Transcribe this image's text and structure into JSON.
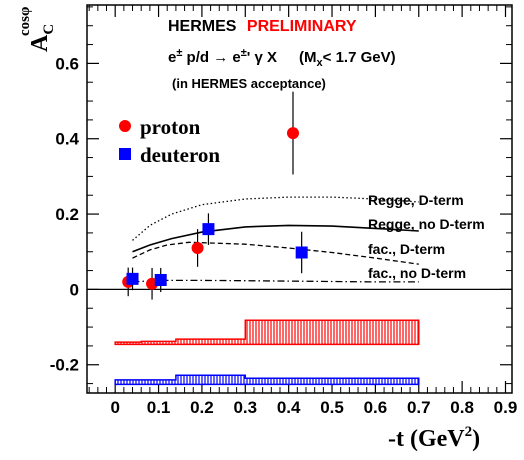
{
  "chart_data": {
    "type": "scatter",
    "title": "HERMES",
    "title_tag": "PRELIMINARY",
    "title_tag_color": "#ff0000",
    "subtitle_parts": {
      "a": "e",
      "b": "±",
      "c": " p/d → e",
      "d": "±",
      "e": "' γ X",
      "mass_open": "(M",
      "mass_sub": "x",
      "mass_close": "< 1.7 GeV)"
    },
    "note": "(in HERMES acceptance)",
    "xlabel_main": "-t (GeV",
    "xlabel_exp": "2",
    "xlabel_close": ")",
    "ylabel_main": "A",
    "ylabel_sub": "C",
    "ylabel_sup": "cosφ",
    "xlim": [
      -0.065,
      0.915
    ],
    "ylim": [
      -0.275,
      0.755
    ],
    "xticks": [
      0,
      0.1,
      0.2,
      0.3,
      0.4,
      0.5,
      0.6,
      0.7,
      0.8,
      0.9
    ],
    "xtick_labels": [
      "0",
      "0.1",
      "0.2",
      "0.3",
      "0.4",
      "0.5",
      "0.6",
      "0.7",
      "0.8",
      "0.9"
    ],
    "yticks_labeled": [
      -0.2,
      0,
      0.2,
      0.4,
      0.6
    ],
    "ytick_labels": [
      "-0.2",
      "0",
      "0.2",
      "0.4",
      "0.6"
    ],
    "zero_line": true,
    "series": [
      {
        "name": "proton",
        "marker": "circle",
        "color": "#ff0000",
        "points": [
          {
            "x": 0.03,
            "y": 0.02,
            "err": 0.038
          },
          {
            "x": 0.085,
            "y": 0.015,
            "err": 0.042
          },
          {
            "x": 0.19,
            "y": 0.11,
            "err": 0.05
          },
          {
            "x": 0.41,
            "y": 0.415,
            "err": 0.11
          }
        ]
      },
      {
        "name": "deuteron",
        "marker": "square",
        "color": "#0000ff",
        "points": [
          {
            "x": 0.04,
            "y": 0.028,
            "err": 0.03
          },
          {
            "x": 0.105,
            "y": 0.025,
            "err": 0.032
          },
          {
            "x": 0.215,
            "y": 0.16,
            "err": 0.042
          },
          {
            "x": 0.43,
            "y": 0.098,
            "err": 0.055
          }
        ]
      }
    ],
    "curves": [
      {
        "label": "Regge, D-term",
        "style": "dotted",
        "points": [
          [
            0.04,
            0.13
          ],
          [
            0.08,
            0.17
          ],
          [
            0.13,
            0.2
          ],
          [
            0.2,
            0.225
          ],
          [
            0.3,
            0.24
          ],
          [
            0.4,
            0.245
          ],
          [
            0.5,
            0.245
          ],
          [
            0.6,
            0.24
          ],
          [
            0.7,
            0.232
          ]
        ]
      },
      {
        "label": "Regge, no D-term",
        "style": "solid",
        "points": [
          [
            0.04,
            0.1
          ],
          [
            0.08,
            0.118
          ],
          [
            0.13,
            0.135
          ],
          [
            0.2,
            0.152
          ],
          [
            0.3,
            0.166
          ],
          [
            0.4,
            0.17
          ],
          [
            0.5,
            0.168
          ],
          [
            0.6,
            0.162
          ],
          [
            0.7,
            0.155
          ]
        ]
      },
      {
        "label": "fac., D-term",
        "style": "dashed",
        "points": [
          [
            0.04,
            0.083
          ],
          [
            0.08,
            0.105
          ],
          [
            0.12,
            0.118
          ],
          [
            0.17,
            0.125
          ],
          [
            0.2,
            0.124
          ],
          [
            0.3,
            0.12
          ],
          [
            0.4,
            0.11
          ],
          [
            0.5,
            0.098
          ],
          [
            0.6,
            0.083
          ],
          [
            0.7,
            0.067
          ]
        ]
      },
      {
        "label": "fac., no D-term",
        "style": "dashdot",
        "points": [
          [
            0.04,
            0.02
          ],
          [
            0.1,
            0.024
          ],
          [
            0.2,
            0.024
          ],
          [
            0.3,
            0.023
          ],
          [
            0.4,
            0.022
          ],
          [
            0.5,
            0.021
          ],
          [
            0.6,
            0.02
          ],
          [
            0.7,
            0.02
          ]
        ]
      }
    ],
    "systematic_bands": [
      {
        "series": "proton",
        "color": "#ff0000",
        "base": -0.146,
        "bins": [
          [
            0.0,
            0.06,
            -0.14
          ],
          [
            0.06,
            0.14,
            -0.138
          ],
          [
            0.14,
            0.3,
            -0.132
          ],
          [
            0.3,
            0.7,
            -0.082
          ]
        ]
      },
      {
        "series": "deuteron",
        "color": "#0000ff",
        "base": -0.252,
        "bins": [
          [
            0.0,
            0.06,
            -0.24
          ],
          [
            0.06,
            0.14,
            -0.24
          ],
          [
            0.14,
            0.3,
            -0.228
          ],
          [
            0.3,
            0.7,
            -0.236
          ]
        ]
      }
    ]
  }
}
